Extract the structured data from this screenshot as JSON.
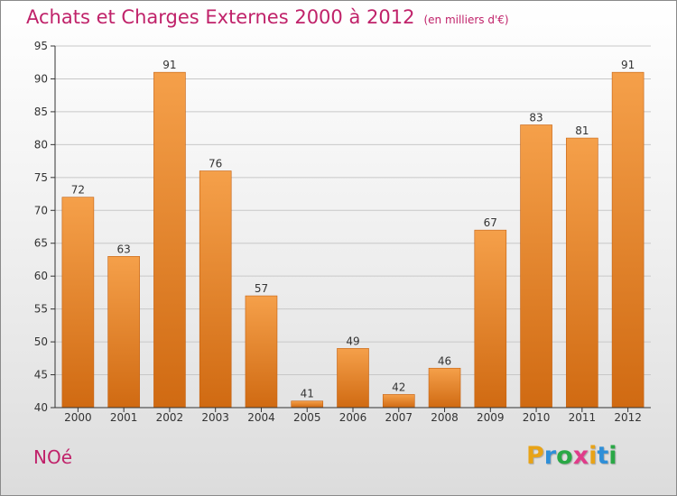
{
  "header": {
    "title": "Achats et Charges Externes 2000 à 2012",
    "unit": "(en milliers d'€)"
  },
  "footer": {
    "commune": "NOé",
    "logo_letters": [
      "P",
      "r",
      "o",
      "x",
      "i",
      "t",
      "i"
    ],
    "logo_colors": [
      "#e8a317",
      "#2f8fd8",
      "#2aa846",
      "#e03c8a",
      "#e8a317",
      "#2f8fd8",
      "#2aa846"
    ]
  },
  "colors": {
    "title": "#c0226a",
    "bar_light": "#f5a04a",
    "bar_dark": "#d06a12",
    "grid": "#c8c8c8",
    "axis": "#333333"
  },
  "chart_data": {
    "type": "bar",
    "title": "Achats et Charges Externes 2000 à 2012",
    "subtitle": "(en milliers d'€)",
    "categories": [
      "2000",
      "2001",
      "2002",
      "2003",
      "2004",
      "2005",
      "2006",
      "2007",
      "2008",
      "2009",
      "2010",
      "2011",
      "2012"
    ],
    "values": [
      72,
      63,
      91,
      76,
      57,
      41,
      49,
      42,
      46,
      67,
      83,
      81,
      91
    ],
    "ylim": [
      40,
      95
    ],
    "yticks": [
      40,
      45,
      50,
      55,
      60,
      65,
      70,
      75,
      80,
      85,
      90,
      95
    ],
    "xlabel": "",
    "ylabel": "",
    "grid": true,
    "data_labels": true
  }
}
